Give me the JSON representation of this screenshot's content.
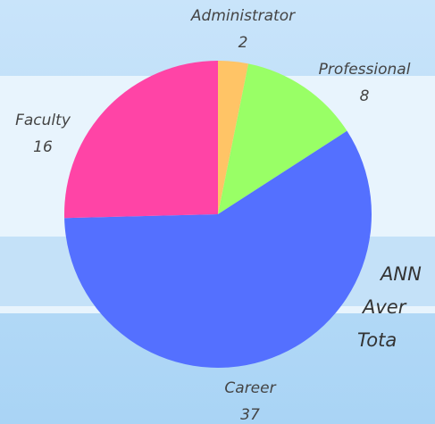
{
  "chart_data": {
    "type": "pie",
    "categories": [
      "Administrator",
      "Professional",
      "Career",
      "Faculty"
    ],
    "values": [
      2,
      8,
      37,
      16
    ],
    "colors": [
      "#ffc466",
      "#99ff66",
      "#5470ff",
      "#ff44a6"
    ],
    "annotations": [
      "ANN",
      "Aver",
      "Tota"
    ]
  }
}
